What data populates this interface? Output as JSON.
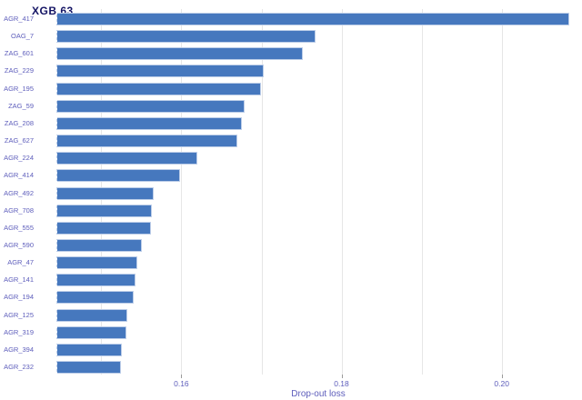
{
  "colors": {
    "bar_fill": "#4678be",
    "bar_border": "#bccde8",
    "gridline": "#e6e6e6",
    "tick_mark": "#9a9a9a",
    "axis_text": "#5d5dbb",
    "title_text": "#141464",
    "background": "#ffffff"
  },
  "chart_data": {
    "type": "bar",
    "orientation": "horizontal",
    "title": "XGB 63",
    "xlabel": "Drop-out loss",
    "ylabel": "",
    "legend": null,
    "grid": "vertical-only",
    "categories": [
      "AGR_417",
      "OAG_7",
      "ZAG_601",
      "ZAG_229",
      "AGR_195",
      "ZAG_59",
      "ZAG_208",
      "ZAG_627",
      "AGR_224",
      "AGR_414",
      "AGR_492",
      "AGR_708",
      "AGR_555",
      "AGR_590",
      "AGR_47",
      "AGR_141",
      "AGR_194",
      "AGR_125",
      "AGR_319",
      "AGR_394",
      "AGR_232"
    ],
    "values": [
      0.2084,
      0.1767,
      0.1752,
      0.1703,
      0.1699,
      0.1679,
      0.1676,
      0.167,
      0.162,
      0.1598,
      0.1566,
      0.1563,
      0.1562,
      0.1551,
      0.1545,
      0.1543,
      0.154,
      0.1533,
      0.1531,
      0.1526,
      0.1524
    ],
    "bar_baseline": 0.1444,
    "xlim": [
      0.1444,
      0.2098
    ],
    "x_ticks": [
      0.16,
      0.18,
      0.2
    ],
    "x_tick_labels": [
      "0.16",
      "0.18",
      "0.20"
    ],
    "x_gridlines": [
      0.15,
      0.16,
      0.17,
      0.18,
      0.19,
      0.2
    ]
  }
}
